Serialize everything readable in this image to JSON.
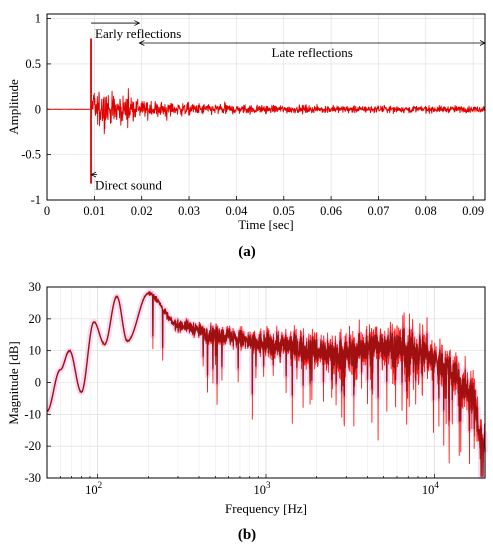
{
  "chart_data": [
    {
      "type": "line",
      "xlabel": "Time [sec]",
      "ylabel": "Amplitude",
      "xlim": [
        0,
        0.0925
      ],
      "ylim": [
        -1,
        1.05
      ],
      "x_ticks": [
        0,
        0.01,
        0.02,
        0.03,
        0.04,
        0.05,
        0.06,
        0.07,
        0.08,
        0.09
      ],
      "x_tick_labels": [
        "0",
        "0.01",
        "0.02",
        "0.03",
        "0.04",
        "0.05",
        "0.06",
        "0.07",
        "0.08",
        "0.09"
      ],
      "y_ticks": [
        -1,
        -0.5,
        0,
        0.5,
        1
      ],
      "y_tick_labels": [
        "-1",
        "-0.5",
        "0",
        "0.5",
        "1"
      ],
      "grid": true,
      "series_color": "#e00000",
      "direct_sound": {
        "time": 0.0093,
        "peak": 0.78,
        "trough": -0.82
      },
      "envelope": [
        {
          "t": 0.0093,
          "a": 0.0
        },
        {
          "t": 0.01,
          "a": 0.3
        },
        {
          "t": 0.015,
          "a": 0.22
        },
        {
          "t": 0.02,
          "a": 0.14
        },
        {
          "t": 0.03,
          "a": 0.09
        },
        {
          "t": 0.045,
          "a": 0.065
        },
        {
          "t": 0.06,
          "a": 0.055
        },
        {
          "t": 0.0925,
          "a": 0.05
        }
      ],
      "annotations": [
        {
          "text": "Early reflections",
          "x_from": 0.0093,
          "x_to": 0.0195,
          "y": 0.95
        },
        {
          "text": "Late reflections",
          "x_from": 0.0195,
          "x_to": 0.0925,
          "y": 0.73
        },
        {
          "text": "Direct sound",
          "x": 0.0093,
          "y": -0.72
        }
      ],
      "caption": "(a)"
    },
    {
      "type": "line",
      "xlabel": "Frequency [Hz]",
      "ylabel": "Magnitude [dB]",
      "xscale": "log",
      "xlim": [
        50,
        20000
      ],
      "ylim": [
        -30,
        30
      ],
      "y_ticks": [
        -30,
        -20,
        -10,
        0,
        10,
        20,
        30
      ],
      "y_tick_labels": [
        "-30",
        "-20",
        "-10",
        "0",
        "10",
        "20",
        "30"
      ],
      "x_tick_labels": [
        {
          "base": "10",
          "exp": "2",
          "value": 100
        },
        {
          "base": "10",
          "exp": "3",
          "value": 1000
        },
        {
          "base": "10",
          "exp": "4",
          "value": 10000
        }
      ],
      "grid": true,
      "series_colors": [
        "#a01010",
        "#ff1a1a"
      ],
      "trend": [
        {
          "f": 50,
          "db": -9
        },
        {
          "f": 60,
          "db": 4
        },
        {
          "f": 68,
          "db": 10
        },
        {
          "f": 80,
          "db": -3
        },
        {
          "f": 95,
          "db": 19
        },
        {
          "f": 110,
          "db": 12
        },
        {
          "f": 130,
          "db": 27
        },
        {
          "f": 150,
          "db": 13
        },
        {
          "f": 200,
          "db": 28
        },
        {
          "f": 300,
          "db": 18
        },
        {
          "f": 500,
          "db": 15
        },
        {
          "f": 1000,
          "db": 12
        },
        {
          "f": 3000,
          "db": 9
        },
        {
          "f": 5000,
          "db": 12
        },
        {
          "f": 8000,
          "db": 10
        },
        {
          "f": 12000,
          "db": 5
        },
        {
          "f": 16000,
          "db": -2
        },
        {
          "f": 20000,
          "db": -20
        }
      ],
      "caption": "(b)"
    }
  ]
}
